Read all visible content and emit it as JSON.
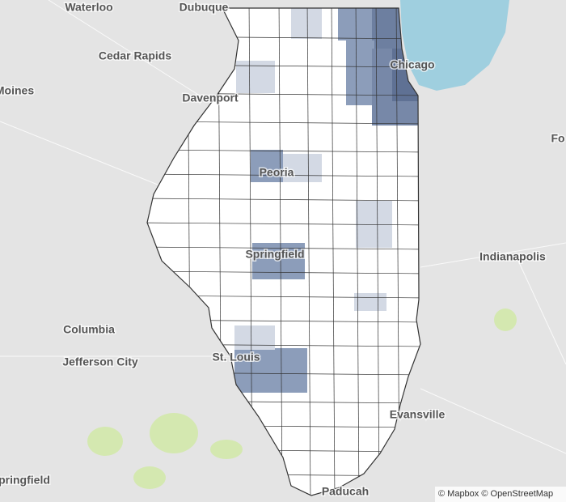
{
  "map": {
    "labels": [
      "Waterloo",
      "Dubuque",
      "Cedar Rapids",
      "Moines",
      "Davenport",
      "Chicago",
      "Peoria",
      "Springfield",
      "Indianapolis",
      "Fo",
      "Columbia",
      "Jefferson City",
      "St. Louis",
      "Evansville",
      "Paducah",
      "pringfield"
    ],
    "attribution": "© Mapbox © OpenStreetMap"
  }
}
